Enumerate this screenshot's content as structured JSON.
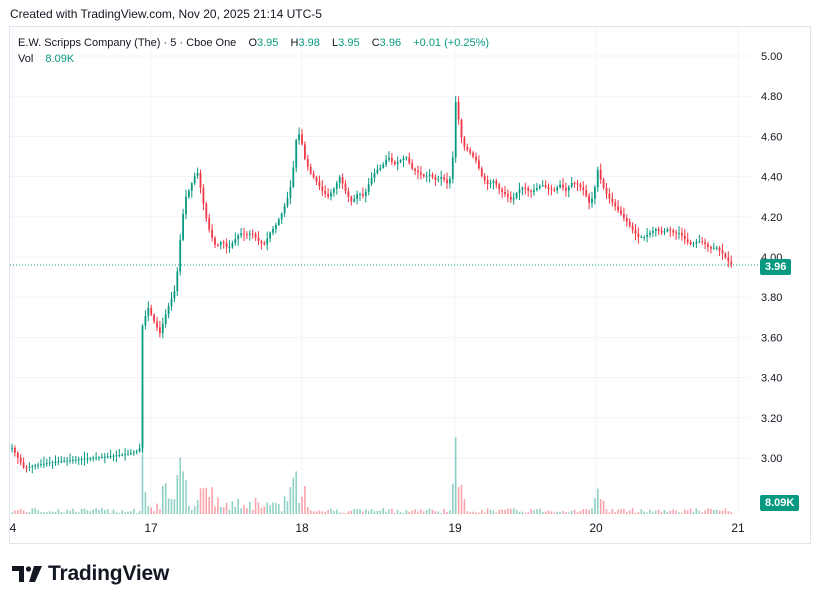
{
  "header": {
    "caption": "Created with TradingView.com, Nov 20, 2025 21:14 UTC-5"
  },
  "legend": {
    "symbol": "E.W. Scripps Company (The)",
    "interval": "5",
    "exchange": "Cboe One",
    "open_label": "O",
    "open": "3.95",
    "high_label": "H",
    "high": "3.98",
    "low_label": "L",
    "low": "3.95",
    "close_label": "C",
    "close": "3.96",
    "change": "+0.01 (+0.25%)",
    "volume_label": "Vol",
    "volume": "8.09K"
  },
  "tags": {
    "price": "3.96",
    "volume": "8.09K"
  },
  "brand": {
    "name": "TradingView"
  },
  "colors": {
    "up": "#089981",
    "down": "#f23645",
    "grid": "#f0f3fa",
    "text": "#131722"
  },
  "chart_data": {
    "type": "candlestick",
    "y_ticks": [
      "5.00",
      "4.80",
      "4.60",
      "4.40",
      "4.20",
      "4.00",
      "3.80",
      "3.60",
      "3.40",
      "3.20",
      "3.00"
    ],
    "ylim": [
      2.8,
      5.06
    ],
    "x_ticks": [
      "4",
      "17",
      "18",
      "19",
      "20",
      "21"
    ],
    "last_price": 3.96,
    "last_volume": "8.09K",
    "grid": true,
    "close_path": [
      [
        0,
        3.05
      ],
      [
        12,
        2.95
      ],
      [
        20,
        2.96
      ],
      [
        40,
        2.98
      ],
      [
        60,
        2.99
      ],
      [
        80,
        3.0
      ],
      [
        100,
        3.01
      ],
      [
        115,
        3.02
      ],
      [
        124,
        3.03
      ],
      [
        128,
        3.05
      ],
      [
        130,
        3.65
      ],
      [
        136,
        3.75
      ],
      [
        142,
        3.68
      ],
      [
        148,
        3.62
      ],
      [
        154,
        3.72
      ],
      [
        160,
        3.8
      ],
      [
        164,
        3.85
      ],
      [
        166,
        3.97
      ],
      [
        170,
        4.18
      ],
      [
        174,
        4.3
      ],
      [
        178,
        4.34
      ],
      [
        182,
        4.4
      ],
      [
        186,
        4.42
      ],
      [
        190,
        4.3
      ],
      [
        194,
        4.2
      ],
      [
        198,
        4.12
      ],
      [
        204,
        4.05
      ],
      [
        210,
        4.08
      ],
      [
        216,
        4.04
      ],
      [
        222,
        4.08
      ],
      [
        228,
        4.12
      ],
      [
        234,
        4.11
      ],
      [
        240,
        4.12
      ],
      [
        246,
        4.08
      ],
      [
        252,
        4.06
      ],
      [
        258,
        4.12
      ],
      [
        264,
        4.16
      ],
      [
        270,
        4.22
      ],
      [
        276,
        4.3
      ],
      [
        280,
        4.38
      ],
      [
        284,
        4.58
      ],
      [
        288,
        4.62
      ],
      [
        292,
        4.5
      ],
      [
        298,
        4.42
      ],
      [
        304,
        4.38
      ],
      [
        310,
        4.33
      ],
      [
        316,
        4.3
      ],
      [
        322,
        4.34
      ],
      [
        328,
        4.4
      ],
      [
        334,
        4.32
      ],
      [
        340,
        4.27
      ],
      [
        346,
        4.32
      ],
      [
        352,
        4.3
      ],
      [
        358,
        4.38
      ],
      [
        364,
        4.43
      ],
      [
        370,
        4.45
      ],
      [
        376,
        4.5
      ],
      [
        382,
        4.46
      ],
      [
        388,
        4.48
      ],
      [
        394,
        4.5
      ],
      [
        400,
        4.44
      ],
      [
        406,
        4.42
      ],
      [
        412,
        4.4
      ],
      [
        418,
        4.41
      ],
      [
        424,
        4.38
      ],
      [
        430,
        4.4
      ],
      [
        436,
        4.36
      ],
      [
        440,
        4.42
      ],
      [
        444,
        4.8
      ],
      [
        448,
        4.62
      ],
      [
        452,
        4.55
      ],
      [
        458,
        4.52
      ],
      [
        464,
        4.48
      ],
      [
        470,
        4.4
      ],
      [
        476,
        4.36
      ],
      [
        482,
        4.38
      ],
      [
        488,
        4.33
      ],
      [
        494,
        4.31
      ],
      [
        500,
        4.28
      ],
      [
        506,
        4.33
      ],
      [
        512,
        4.35
      ],
      [
        518,
        4.32
      ],
      [
        524,
        4.34
      ],
      [
        530,
        4.36
      ],
      [
        536,
        4.34
      ],
      [
        542,
        4.33
      ],
      [
        548,
        4.36
      ],
      [
        554,
        4.33
      ],
      [
        560,
        4.37
      ],
      [
        566,
        4.36
      ],
      [
        572,
        4.33
      ],
      [
        578,
        4.26
      ],
      [
        582,
        4.32
      ],
      [
        586,
        4.44
      ],
      [
        590,
        4.36
      ],
      [
        596,
        4.3
      ],
      [
        602,
        4.26
      ],
      [
        608,
        4.22
      ],
      [
        614,
        4.18
      ],
      [
        620,
        4.14
      ],
      [
        626,
        4.1
      ],
      [
        632,
        4.1
      ],
      [
        638,
        4.12
      ],
      [
        644,
        4.14
      ],
      [
        650,
        4.12
      ],
      [
        656,
        4.14
      ],
      [
        662,
        4.12
      ],
      [
        668,
        4.12
      ],
      [
        674,
        4.08
      ],
      [
        680,
        4.06
      ],
      [
        686,
        4.08
      ],
      [
        692,
        4.07
      ],
      [
        698,
        4.04
      ],
      [
        704,
        4.05
      ],
      [
        710,
        4.02
      ],
      [
        716,
        3.98
      ],
      [
        720,
        3.96
      ]
    ]
  }
}
